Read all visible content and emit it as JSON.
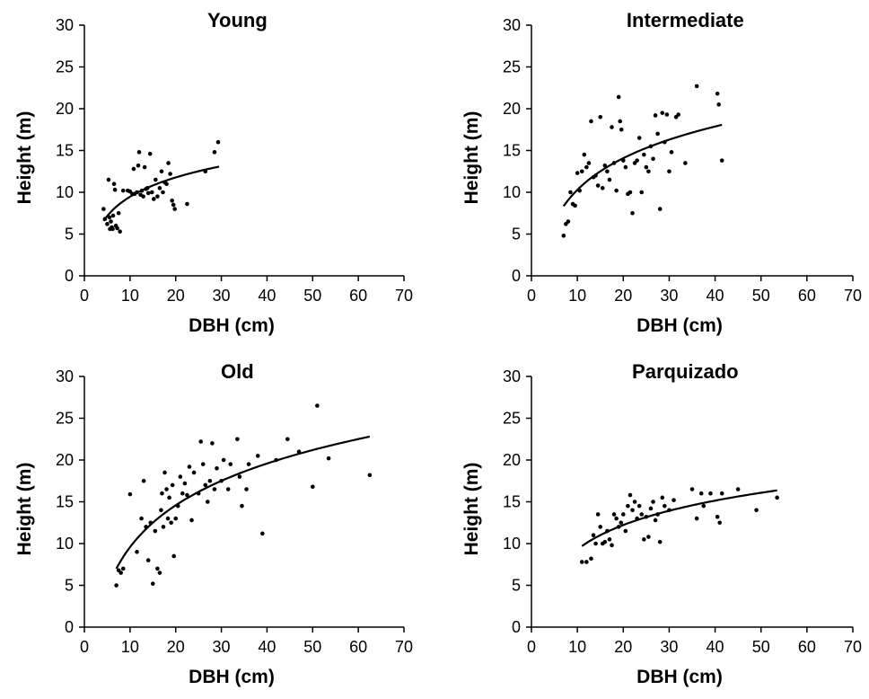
{
  "chart_data": [
    {
      "type": "scatter",
      "title": "Young",
      "xlabel": "DBH (cm)",
      "ylabel": "Height (m)",
      "xlim": [
        0,
        70
      ],
      "ylim": [
        0,
        30
      ],
      "xticks": [
        0,
        10,
        20,
        30,
        40,
        50,
        60,
        70
      ],
      "yticks": [
        0,
        5,
        10,
        15,
        20,
        25,
        30
      ],
      "grid": false,
      "points": [
        [
          4.2,
          8.0
        ],
        [
          4.5,
          6.8
        ],
        [
          5.0,
          6.2
        ],
        [
          5.3,
          11.5
        ],
        [
          5.5,
          7.0
        ],
        [
          5.6,
          5.6
        ],
        [
          5.8,
          6.5
        ],
        [
          6.0,
          5.8
        ],
        [
          6.2,
          5.6
        ],
        [
          6.3,
          7.2
        ],
        [
          6.5,
          11.0
        ],
        [
          6.7,
          10.3
        ],
        [
          6.9,
          6.0
        ],
        [
          7.2,
          5.7
        ],
        [
          7.5,
          7.5
        ],
        [
          7.8,
          5.3
        ],
        [
          8.5,
          10.2
        ],
        [
          9.5,
          10.2
        ],
        [
          10.0,
          10.1
        ],
        [
          10.5,
          9.8
        ],
        [
          10.8,
          12.8
        ],
        [
          11.0,
          9.8
        ],
        [
          11.5,
          10.0
        ],
        [
          11.8,
          13.2
        ],
        [
          12.0,
          14.8
        ],
        [
          12.3,
          9.7
        ],
        [
          12.6,
          10.2
        ],
        [
          12.9,
          9.5
        ],
        [
          13.2,
          13.0
        ],
        [
          13.5,
          10.4
        ],
        [
          13.8,
          10.5
        ],
        [
          14.0,
          9.9
        ],
        [
          14.4,
          14.6
        ],
        [
          14.8,
          10.0
        ],
        [
          15.2,
          9.2
        ],
        [
          15.6,
          11.5
        ],
        [
          16.0,
          9.5
        ],
        [
          16.5,
          10.5
        ],
        [
          16.9,
          12.5
        ],
        [
          17.2,
          10.0
        ],
        [
          17.6,
          11.2
        ],
        [
          18.0,
          11.0
        ],
        [
          18.4,
          13.5
        ],
        [
          18.8,
          12.2
        ],
        [
          19.2,
          9.0
        ],
        [
          19.5,
          8.5
        ],
        [
          19.8,
          8.0
        ],
        [
          22.5,
          8.6
        ],
        [
          26.5,
          12.5
        ],
        [
          28.5,
          14.8
        ],
        [
          29.3,
          16.0
        ]
      ],
      "fit": {
        "x_start": 4.2,
        "x_end": 29.5
      }
    },
    {
      "type": "scatter",
      "title": "Intermediate",
      "xlabel": "DBH (cm)",
      "ylabel": "Height (m)",
      "xlim": [
        0,
        70
      ],
      "ylim": [
        0,
        30
      ],
      "xticks": [
        0,
        10,
        20,
        30,
        40,
        50,
        60,
        70
      ],
      "yticks": [
        0,
        5,
        10,
        15,
        20,
        25,
        30
      ],
      "grid": false,
      "points": [
        [
          7.0,
          4.8
        ],
        [
          7.5,
          6.2
        ],
        [
          8.0,
          6.5
        ],
        [
          8.5,
          10.0
        ],
        [
          9.0,
          8.6
        ],
        [
          9.5,
          8.4
        ],
        [
          10.0,
          12.3
        ],
        [
          10.5,
          10.2
        ],
        [
          11.0,
          12.5
        ],
        [
          11.5,
          14.5
        ],
        [
          12.0,
          13.0
        ],
        [
          12.5,
          13.5
        ],
        [
          13.0,
          18.5
        ],
        [
          13.5,
          11.8
        ],
        [
          14.0,
          12.0
        ],
        [
          14.5,
          10.8
        ],
        [
          15.0,
          19.0
        ],
        [
          15.5,
          10.5
        ],
        [
          16.0,
          13.2
        ],
        [
          16.5,
          12.5
        ],
        [
          17.0,
          11.5
        ],
        [
          17.5,
          17.8
        ],
        [
          18.0,
          13.5
        ],
        [
          18.5,
          10.2
        ],
        [
          19.0,
          21.4
        ],
        [
          19.3,
          18.5
        ],
        [
          19.6,
          17.5
        ],
        [
          20.0,
          13.8
        ],
        [
          20.5,
          13.0
        ],
        [
          21.0,
          9.8
        ],
        [
          21.5,
          10.0
        ],
        [
          22.0,
          7.5
        ],
        [
          22.5,
          13.5
        ],
        [
          23.0,
          13.8
        ],
        [
          23.5,
          16.5
        ],
        [
          24.0,
          10.0
        ],
        [
          24.5,
          14.5
        ],
        [
          25.0,
          13.0
        ],
        [
          25.5,
          12.5
        ],
        [
          26.0,
          15.5
        ],
        [
          26.5,
          14.0
        ],
        [
          27.0,
          19.2
        ],
        [
          27.5,
          17.0
        ],
        [
          28.0,
          8.0
        ],
        [
          28.5,
          19.5
        ],
        [
          29.0,
          16.0
        ],
        [
          29.5,
          19.3
        ],
        [
          30.0,
          12.5
        ],
        [
          30.5,
          14.8
        ],
        [
          31.5,
          19.0
        ],
        [
          32.0,
          19.3
        ],
        [
          33.5,
          13.5
        ],
        [
          36.0,
          22.7
        ],
        [
          40.5,
          21.8
        ],
        [
          40.8,
          20.5
        ],
        [
          41.5,
          13.8
        ]
      ],
      "fit": {
        "x_start": 7.0,
        "x_end": 41.5
      }
    },
    {
      "type": "scatter",
      "title": "Old",
      "xlabel": "DBH (cm)",
      "ylabel": "Height (m)",
      "xlim": [
        0,
        70
      ],
      "ylim": [
        0,
        30
      ],
      "xticks": [
        0,
        10,
        20,
        30,
        40,
        50,
        60,
        70
      ],
      "yticks": [
        0,
        5,
        10,
        15,
        20,
        25,
        30
      ],
      "grid": false,
      "points": [
        [
          7.0,
          5.0
        ],
        [
          7.5,
          6.8
        ],
        [
          8.0,
          6.5
        ],
        [
          8.5,
          7.0
        ],
        [
          10.0,
          15.9
        ],
        [
          11.5,
          9.0
        ],
        [
          12.5,
          13.0
        ],
        [
          13.0,
          17.5
        ],
        [
          13.5,
          12.0
        ],
        [
          14.0,
          8.0
        ],
        [
          14.5,
          12.5
        ],
        [
          15.0,
          5.2
        ],
        [
          15.5,
          11.5
        ],
        [
          16.0,
          7.0
        ],
        [
          16.5,
          6.5
        ],
        [
          16.8,
          14.0
        ],
        [
          17.0,
          16.0
        ],
        [
          17.3,
          12.0
        ],
        [
          17.6,
          18.5
        ],
        [
          18.0,
          16.5
        ],
        [
          18.3,
          13.0
        ],
        [
          18.6,
          15.5
        ],
        [
          19.0,
          12.5
        ],
        [
          19.3,
          17.0
        ],
        [
          19.6,
          8.5
        ],
        [
          20.0,
          13.0
        ],
        [
          20.5,
          14.5
        ],
        [
          21.0,
          18.0
        ],
        [
          21.5,
          16.0
        ],
        [
          22.0,
          17.2
        ],
        [
          22.5,
          15.8
        ],
        [
          23.0,
          19.2
        ],
        [
          23.5,
          12.8
        ],
        [
          24.0,
          18.5
        ],
        [
          25.0,
          16.0
        ],
        [
          25.5,
          22.2
        ],
        [
          26.0,
          19.5
        ],
        [
          26.5,
          17.0
        ],
        [
          27.0,
          15.0
        ],
        [
          27.5,
          17.5
        ],
        [
          28.0,
          22.0
        ],
        [
          28.5,
          16.5
        ],
        [
          29.0,
          19.0
        ],
        [
          30.0,
          17.5
        ],
        [
          30.5,
          20.0
        ],
        [
          31.5,
          16.5
        ],
        [
          32.0,
          19.5
        ],
        [
          33.5,
          22.5
        ],
        [
          34.0,
          18.0
        ],
        [
          34.5,
          14.5
        ],
        [
          35.5,
          16.5
        ],
        [
          36.0,
          19.5
        ],
        [
          38.0,
          20.5
        ],
        [
          39.0,
          11.2
        ],
        [
          42.0,
          20.0
        ],
        [
          44.5,
          22.5
        ],
        [
          47.0,
          21.0
        ],
        [
          50.0,
          16.8
        ],
        [
          51.0,
          26.5
        ],
        [
          53.5,
          20.2
        ],
        [
          62.5,
          18.2
        ]
      ],
      "fit": {
        "x_start": 7.0,
        "x_end": 62.5
      }
    },
    {
      "type": "scatter",
      "title": "Parquizado",
      "xlabel": "DBH (cm)",
      "ylabel": "Height (m)",
      "xlim": [
        0,
        70
      ],
      "ylim": [
        0,
        30
      ],
      "xticks": [
        0,
        10,
        20,
        30,
        40,
        50,
        60,
        70
      ],
      "yticks": [
        0,
        5,
        10,
        15,
        20,
        25,
        30
      ],
      "grid": false,
      "points": [
        [
          11.0,
          7.8
        ],
        [
          12.0,
          7.8
        ],
        [
          13.0,
          8.2
        ],
        [
          13.5,
          11.0
        ],
        [
          14.0,
          10.0
        ],
        [
          14.5,
          13.5
        ],
        [
          15.0,
          12.0
        ],
        [
          15.5,
          10.0
        ],
        [
          16.0,
          10.2
        ],
        [
          16.5,
          11.5
        ],
        [
          17.0,
          10.5
        ],
        [
          17.5,
          9.8
        ],
        [
          18.0,
          13.5
        ],
        [
          18.5,
          13.0
        ],
        [
          19.0,
          12.0
        ],
        [
          19.5,
          12.5
        ],
        [
          20.0,
          13.5
        ],
        [
          20.5,
          11.5
        ],
        [
          21.0,
          14.5
        ],
        [
          21.5,
          15.8
        ],
        [
          22.0,
          14.0
        ],
        [
          22.5,
          15.0
        ],
        [
          23.0,
          13.0
        ],
        [
          23.5,
          14.5
        ],
        [
          24.0,
          13.5
        ],
        [
          24.5,
          10.5
        ],
        [
          25.0,
          13.2
        ],
        [
          25.5,
          10.8
        ],
        [
          26.0,
          14.2
        ],
        [
          26.5,
          15.0
        ],
        [
          27.0,
          12.8
        ],
        [
          27.5,
          13.5
        ],
        [
          28.0,
          10.2
        ],
        [
          28.5,
          15.5
        ],
        [
          29.0,
          14.5
        ],
        [
          30.0,
          14.0
        ],
        [
          31.0,
          15.2
        ],
        [
          35.0,
          16.5
        ],
        [
          36.0,
          13.0
        ],
        [
          37.0,
          16.0
        ],
        [
          37.5,
          14.5
        ],
        [
          39.0,
          16.0
        ],
        [
          40.5,
          13.2
        ],
        [
          41.0,
          12.5
        ],
        [
          41.5,
          16.0
        ],
        [
          45.0,
          16.5
        ],
        [
          49.0,
          14.0
        ],
        [
          53.5,
          15.5
        ]
      ],
      "fit": {
        "x_start": 11.0,
        "x_end": 53.5
      }
    }
  ]
}
